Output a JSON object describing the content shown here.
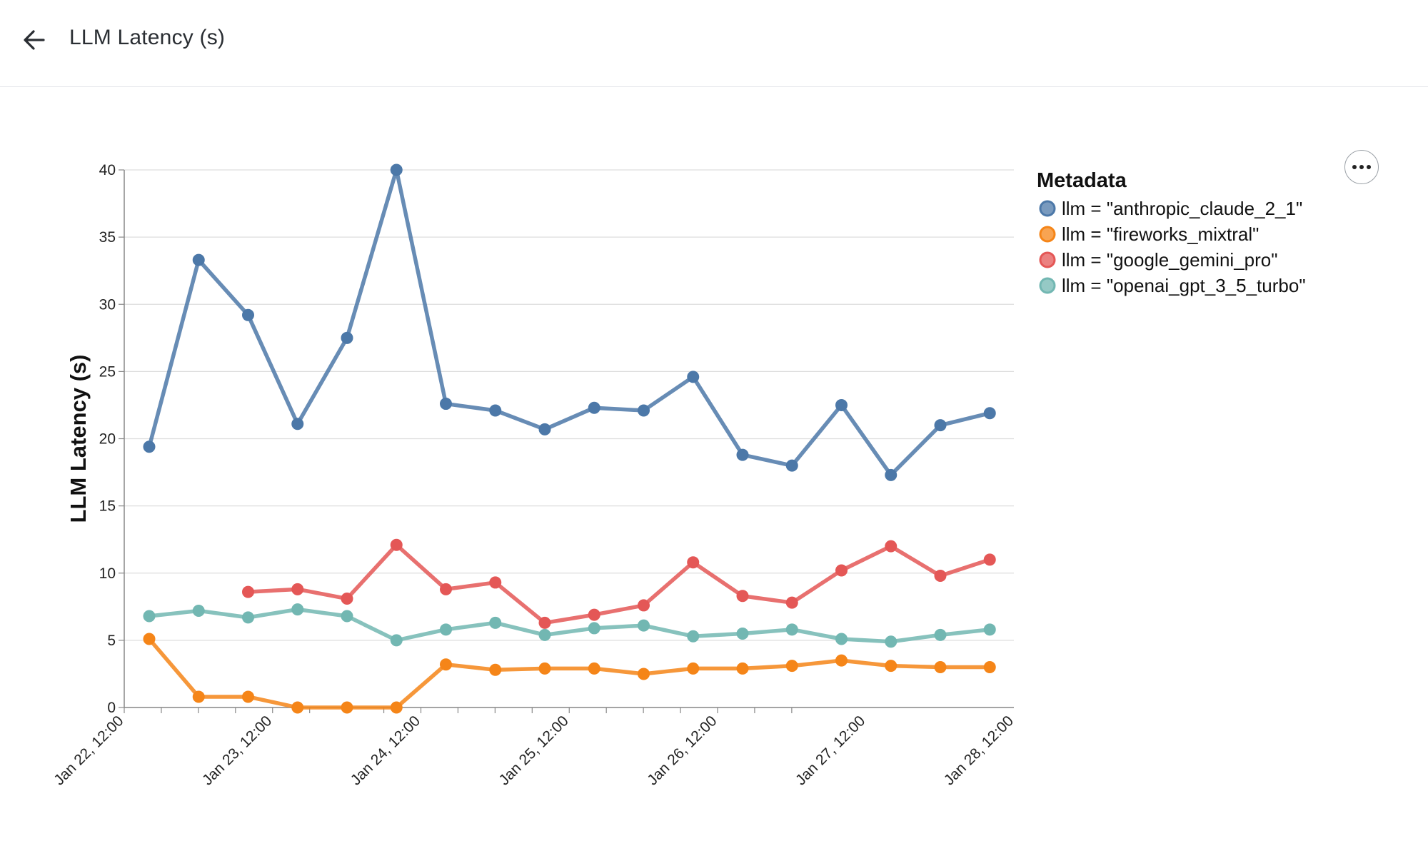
{
  "header": {
    "title": "LLM Latency (s)",
    "back_icon": "arrow-left-icon"
  },
  "actions": {
    "more_icon": "more-horizontal-icon"
  },
  "legend": {
    "title": "Metadata"
  },
  "chart_data": {
    "type": "line",
    "ylabel": "LLM Latency (s)",
    "xlabel": "",
    "ylim": [
      0,
      40
    ],
    "yticks": [
      0,
      5,
      10,
      15,
      20,
      25,
      30,
      35,
      40
    ],
    "xticks": [
      "Jan 22, 12:00",
      "Jan 23, 12:00",
      "Jan 24, 12:00",
      "Jan 25, 12:00",
      "Jan 26, 12:00",
      "Jan 27, 12:00",
      "Jan 28, 12:00"
    ],
    "x": [
      "Jan 22, 15:00",
      "Jan 23, 00:00",
      "Jan 23, 09:00",
      "Jan 23, 18:00",
      "Jan 24, 03:00",
      "Jan 24, 12:00",
      "Jan 24, 21:00",
      "Jan 25, 06:00",
      "Jan 25, 15:00",
      "Jan 26, 00:00",
      "Jan 26, 09:00",
      "Jan 26, 18:00",
      "Jan 27, 03:00",
      "Jan 27, 12:00",
      "Jan 27, 21:00",
      "Jan 28, 06:00",
      "Jan 28, 15:00",
      "Jan 29, 00:00"
    ],
    "grid": true,
    "legend_position": "top-right",
    "series": [
      {
        "name": "llm = \"anthropic_claude_2_1\"",
        "color": "#4c78a8",
        "values": [
          19.4,
          33.3,
          29.2,
          21.1,
          27.5,
          40.0,
          22.6,
          22.1,
          20.7,
          22.3,
          22.1,
          24.6,
          18.8,
          18.0,
          22.5,
          17.3,
          21.0,
          21.9
        ]
      },
      {
        "name": "llm = \"fireworks_mixtral\"",
        "color": "#f58518",
        "values": [
          5.1,
          0.8,
          0.8,
          0.0,
          0.0,
          0.0,
          3.2,
          2.8,
          2.9,
          2.9,
          2.5,
          2.9,
          2.9,
          3.1,
          3.5,
          3.1,
          3.0,
          3.0
        ]
      },
      {
        "name": "llm = \"google_gemini_pro\"",
        "color": "#e45756",
        "values": [
          null,
          null,
          8.6,
          8.8,
          8.1,
          12.1,
          8.8,
          9.3,
          6.3,
          6.9,
          7.6,
          10.8,
          8.3,
          7.8,
          10.2,
          12.0,
          9.8,
          11.0
        ]
      },
      {
        "name": "llm = \"openai_gpt_3_5_turbo\"",
        "color": "#72b7b2",
        "values": [
          6.8,
          7.2,
          6.7,
          7.3,
          6.8,
          5.0,
          5.8,
          6.3,
          5.4,
          5.9,
          6.1,
          5.3,
          5.5,
          5.8,
          5.1,
          4.9,
          5.4,
          5.8
        ]
      }
    ]
  }
}
